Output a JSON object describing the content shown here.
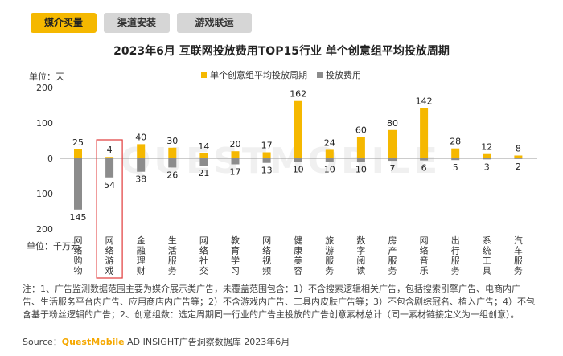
{
  "tabs": [
    {
      "label": "媒介买量",
      "active": true
    },
    {
      "label": "渠道安装",
      "active": false
    },
    {
      "label": "游戏联运",
      "active": false
    }
  ],
  "colors": {
    "accent": "#f5b800",
    "bar_top": "#f5b800",
    "bar_bottom": "#8c8c8c",
    "highlight_box": "#e03a3a"
  },
  "watermark": "QUESTMOBILE",
  "unit_top": "单位：天",
  "unit_bottom": "单位：千万元",
  "footnote": "注：1、广告监测数据范围主要为媒介展示类广告，未覆盖范围包含：1）不含搜索逻辑相关广告，包括搜索引擎广告、电商内广告、生活服务平台内广告、应用商店内广告等；2）不含游戏内广告、工具内皮肤广告等；3）不包含剧综冠名、植入广告；4）不包含基于粉丝逻辑的广告；2、创意组数：选定周期同一行业的广告主投放的广告创意素材总计（同一素材链接定义为一组创意）。",
  "source": {
    "prefix": "Source：",
    "brand": "QuestMobile",
    "suffix": " AD INSIGHT广告洞察数据库 2023年6月"
  },
  "chart_data": {
    "type": "bar",
    "title": "2023年6月 互联网投放费用TOP15行业 单个创意组平均投放周期",
    "legend_position": "top",
    "highlighted_category": "网络游戏",
    "categories": [
      "网络购物",
      "网络游戏",
      "金融理财",
      "生活服务",
      "网络社交",
      "教育学习",
      "网络视频",
      "健康美容",
      "旅游服务",
      "数字阅读",
      "房产服务",
      "网络音乐",
      "出行服务",
      "系统工具",
      "汽车服务"
    ],
    "series": [
      {
        "name": "单个创意组平均投放周期",
        "unit": "天",
        "direction": "up",
        "values": [
          25,
          4,
          40,
          30,
          14,
          20,
          17,
          162,
          24,
          60,
          80,
          142,
          28,
          12,
          8
        ]
      },
      {
        "name": "投放费用",
        "unit": "千万元",
        "direction": "down",
        "values": [
          145,
          54,
          38,
          26,
          21,
          17,
          13,
          10,
          10,
          10,
          7,
          6,
          5,
          3,
          2
        ]
      }
    ],
    "y_axis": {
      "ticks": [
        "200",
        "100",
        "0",
        "100",
        "200"
      ],
      "range_up": [
        0,
        200
      ],
      "range_down": [
        0,
        200
      ]
    }
  }
}
